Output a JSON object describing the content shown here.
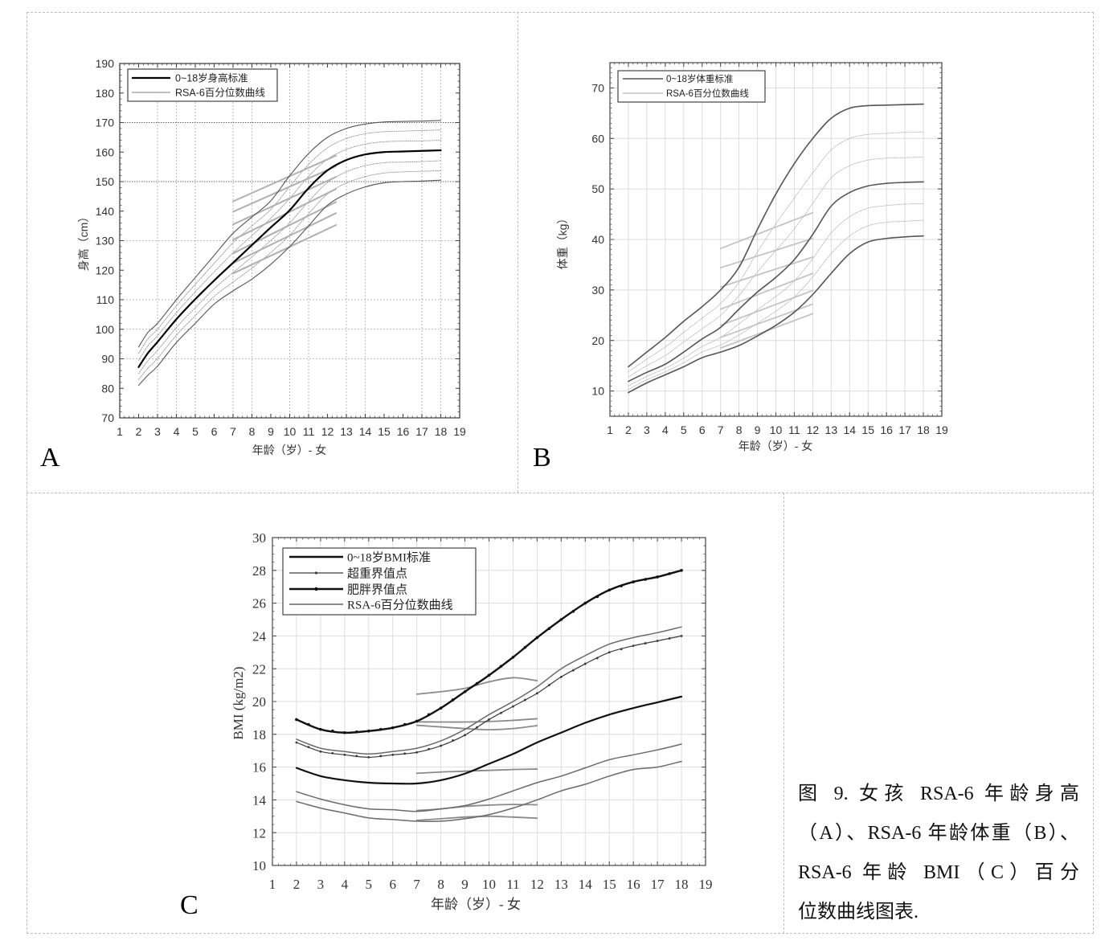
{
  "figure": {
    "caption_lines": [
      "图 9. 女孩 RSA-6 年龄身高",
      "（A）、RSA-6 年龄体重（B）、",
      "RSA-6 年龄 BMI（C）百分",
      "位数曲线图表."
    ]
  },
  "chart_data": [
    {
      "panel_label": "A",
      "type": "line",
      "xlabel": "年龄（岁）- 女",
      "ylabel": "身高（cm）",
      "xlim": [
        1,
        19
      ],
      "ylim": [
        70,
        190
      ],
      "xticks": [
        1,
        2,
        3,
        4,
        5,
        6,
        7,
        8,
        9,
        10,
        11,
        12,
        13,
        14,
        15,
        16,
        17,
        18,
        19
      ],
      "yticks": [
        70,
        80,
        90,
        100,
        110,
        120,
        130,
        140,
        150,
        160,
        170,
        180,
        190
      ],
      "grid": true,
      "xgrid": [
        3,
        4,
        5,
        7,
        8,
        10,
        11,
        13,
        14,
        17,
        18
      ],
      "ygrid": [
        90,
        100,
        110,
        130
      ],
      "emphasized_ygrid": [
        150,
        170
      ],
      "legend": {
        "position": "top-left",
        "entries": [
          "0~18岁身高标准",
          "RSA-6百分位数曲线"
        ]
      },
      "x": [
        2,
        2.5,
        3,
        4,
        5,
        6,
        7,
        8,
        9,
        10,
        11,
        12,
        13,
        14,
        15,
        16,
        17,
        18
      ],
      "series": {
        "standard": [
          87.2,
          92.0,
          95.7,
          103.4,
          110.2,
          116.5,
          122.5,
          128.5,
          134.5,
          140.3,
          147.8,
          153.8,
          157.3,
          159.2,
          160.0,
          160.2,
          160.4,
          160.6
        ],
        "outer_percentiles": [
          [
            94.0,
            99.0,
            102.0,
            110.0,
            117.5,
            125.0,
            132.5,
            138.0,
            143.5,
            152.0,
            159.5,
            165.0,
            168.0,
            169.5,
            170.2,
            170.4,
            170.5,
            170.7
          ],
          [
            81.0,
            84.5,
            87.5,
            95.5,
            102.0,
            108.5,
            113.0,
            117.0,
            122.0,
            128.0,
            135.0,
            142.0,
            145.8,
            148.2,
            149.6,
            150.0,
            150.2,
            150.5
          ]
        ],
        "inner_percentiles": [
          [
            91.8,
            96.8,
            100.0,
            107.9,
            115.2,
            122.3,
            129.3,
            135.0,
            140.6,
            148.3,
            155.8,
            161.4,
            164.6,
            166.2,
            166.9,
            167.1,
            167.3,
            167.5
          ],
          [
            89.5,
            94.4,
            97.8,
            105.6,
            112.7,
            119.4,
            125.9,
            131.7,
            137.6,
            144.3,
            151.8,
            157.6,
            160.9,
            162.7,
            163.5,
            163.7,
            163.8,
            164.0
          ],
          [
            85.0,
            89.4,
            92.8,
            100.6,
            107.3,
            113.7,
            119.2,
            124.5,
            130.1,
            136.0,
            143.3,
            149.7,
            153.3,
            155.4,
            156.4,
            156.6,
            156.8,
            157.1
          ],
          [
            83.0,
            86.9,
            90.1,
            98.0,
            104.6,
            111.1,
            116.0,
            120.7,
            126.0,
            131.9,
            139.1,
            145.8,
            149.5,
            151.7,
            152.9,
            153.3,
            153.5,
            153.7
          ]
        ],
        "rsa6": {
          "x": [
            7,
            12.45
          ],
          "lines": [
            [
              143.3,
              158.8
            ],
            [
              139.8,
              155.2
            ],
            [
              135.5,
              151.6
            ],
            [
              130.3,
              147.5
            ],
            [
              125.7,
              143.1
            ],
            [
              122.4,
              139.3
            ],
            [
              118.9,
              135.3
            ]
          ]
        }
      }
    },
    {
      "panel_label": "B",
      "type": "line",
      "xlabel": "年龄（岁）- 女",
      "ylabel": "体重（kg）",
      "xlim": [
        1,
        19
      ],
      "ylim": [
        5,
        75
      ],
      "xticks": [
        1,
        2,
        3,
        4,
        5,
        6,
        7,
        8,
        9,
        10,
        11,
        12,
        13,
        14,
        15,
        16,
        17,
        18,
        19
      ],
      "yticks": [
        10,
        20,
        30,
        40,
        50,
        60,
        70
      ],
      "grid": true,
      "xgrid": [
        2,
        3,
        4,
        5,
        6,
        7,
        8,
        9,
        10,
        11,
        12,
        13,
        14,
        15,
        16,
        17,
        18
      ],
      "ygrid": [
        10,
        20,
        30,
        40,
        50,
        60,
        70
      ],
      "legend": {
        "position": "top-left",
        "entries": [
          "0~18岁体重标准",
          "RSA-6百分位数曲线"
        ]
      },
      "x": [
        2,
        3,
        4,
        5,
        6,
        7,
        8,
        9,
        10,
        11,
        12,
        13,
        14,
        15,
        16,
        17,
        18
      ],
      "series": {
        "standard_curves": [
          [
            14.8,
            17.7,
            20.6,
            23.8,
            26.7,
            30.0,
            34.5,
            42.0,
            49.0,
            55.0,
            60.0,
            64.0,
            66.0,
            66.5,
            66.6,
            66.7,
            66.8
          ],
          [
            11.9,
            13.7,
            15.3,
            17.7,
            20.3,
            22.6,
            26.2,
            29.6,
            32.5,
            36.0,
            41.0,
            46.6,
            49.3,
            50.6,
            51.1,
            51.3,
            51.4
          ],
          [
            9.7,
            11.6,
            13.2,
            14.8,
            16.6,
            17.7,
            19.0,
            20.9,
            23.0,
            25.6,
            29.1,
            33.3,
            37.2,
            39.5,
            40.2,
            40.5,
            40.7
          ]
        ],
        "inner_percentiles": [
          [
            13.8,
            16.3,
            18.7,
            21.6,
            24.4,
            27.3,
            31.5,
            37.5,
            43.1,
            48.2,
            53.2,
            57.7,
            60.0,
            60.8,
            61.0,
            61.2,
            61.3
          ],
          [
            12.8,
            15.0,
            17.0,
            19.7,
            22.3,
            25.0,
            28.9,
            33.6,
            37.8,
            42.1,
            47.1,
            52.2,
            54.6,
            55.7,
            56.1,
            56.2,
            56.3
          ],
          [
            11.0,
            12.9,
            14.5,
            16.5,
            18.8,
            20.6,
            23.3,
            26.1,
            28.7,
            31.8,
            36.2,
            41.3,
            44.5,
            46.2,
            46.7,
            47.0,
            47.1
          ],
          [
            10.3,
            12.2,
            13.8,
            15.6,
            17.7,
            19.1,
            21.1,
            23.4,
            25.8,
            28.6,
            32.6,
            37.2,
            40.7,
            42.7,
            43.4,
            43.6,
            43.8
          ]
        ],
        "rsa6": {
          "x": [
            7,
            12
          ],
          "lines": [
            [
              38.2,
              45.3
            ],
            [
              34.4,
              40.2
            ],
            [
              30.6,
              36.5
            ],
            [
              26.2,
              33.3
            ],
            [
              23.0,
              29.9
            ],
            [
              20.6,
              27.2
            ],
            [
              18.5,
              25.3
            ]
          ]
        }
      }
    },
    {
      "panel_label": "C",
      "type": "line",
      "xlabel": "年龄（岁）- 女",
      "ylabel": "BMI (kg/m2)",
      "xlim": [
        1,
        19
      ],
      "ylim": [
        10,
        30
      ],
      "xticks": [
        1,
        2,
        3,
        4,
        5,
        6,
        7,
        8,
        9,
        10,
        11,
        12,
        13,
        14,
        15,
        16,
        17,
        18,
        19
      ],
      "yticks": [
        10,
        12,
        14,
        16,
        18,
        20,
        22,
        24,
        26,
        28,
        30
      ],
      "grid": true,
      "xgrid": [
        2,
        3,
        4,
        5,
        6,
        7,
        8,
        9,
        10,
        11,
        12,
        13,
        14,
        15,
        16,
        17,
        18
      ],
      "ygrid": [
        12,
        14,
        16,
        18,
        20,
        22,
        24,
        26,
        28
      ],
      "legend": {
        "position": "top-left",
        "entries": [
          "0~18岁BMI标准",
          "超重界值点",
          "肥胖界值点",
          "RSA-6百分位数曲线"
        ]
      },
      "x": [
        2,
        3,
        4,
        5,
        6,
        7,
        8,
        9,
        10,
        11,
        12,
        13,
        14,
        15,
        16,
        17,
        18
      ],
      "series": {
        "bmi_standard": [
          15.95,
          15.45,
          15.2,
          15.05,
          15.0,
          15.0,
          15.2,
          15.6,
          16.2,
          16.8,
          17.5,
          18.1,
          18.7,
          19.2,
          19.6,
          19.95,
          20.3
        ],
        "overweight_cutoff": [
          17.5,
          16.95,
          16.75,
          16.6,
          16.75,
          16.9,
          17.3,
          17.95,
          18.9,
          19.7,
          20.5,
          21.5,
          22.3,
          23.0,
          23.4,
          23.7,
          24.0
        ],
        "obesity_cutoff": [
          18.9,
          18.3,
          18.1,
          18.2,
          18.4,
          18.8,
          19.6,
          20.6,
          21.6,
          22.7,
          23.9,
          25.0,
          26.0,
          26.8,
          27.3,
          27.6,
          28.0
        ],
        "percentile_curves": [
          [
            17.7,
            17.15,
            16.95,
            16.8,
            16.95,
            17.15,
            17.6,
            18.3,
            19.2,
            20.0,
            20.9,
            22.0,
            22.8,
            23.5,
            23.9,
            24.2,
            24.55
          ],
          [
            14.5,
            14.05,
            13.7,
            13.45,
            13.4,
            13.3,
            13.45,
            13.65,
            14.05,
            14.55,
            15.05,
            15.45,
            15.95,
            16.45,
            16.75,
            17.05,
            17.4
          ],
          [
            13.9,
            13.5,
            13.2,
            12.9,
            12.8,
            12.7,
            12.7,
            12.85,
            13.1,
            13.5,
            14.0,
            14.55,
            14.95,
            15.45,
            15.85,
            16.0,
            16.35
          ]
        ],
        "rsa6": {
          "x": [
            7,
            8,
            9,
            10,
            11,
            12
          ],
          "lines": [
            [
              20.45,
              20.6,
              20.8,
              21.2,
              21.45,
              21.27
            ],
            [
              18.76,
              18.75,
              18.75,
              18.78,
              18.85,
              18.95
            ],
            [
              18.55,
              18.45,
              18.35,
              18.28,
              18.35,
              18.53
            ],
            [
              15.62,
              15.7,
              15.75,
              15.8,
              15.85,
              15.88
            ],
            [
              13.35,
              13.45,
              13.6,
              13.68,
              13.72,
              13.7
            ],
            [
              12.75,
              12.85,
              12.95,
              13.0,
              12.95,
              12.88
            ]
          ]
        }
      }
    }
  ]
}
